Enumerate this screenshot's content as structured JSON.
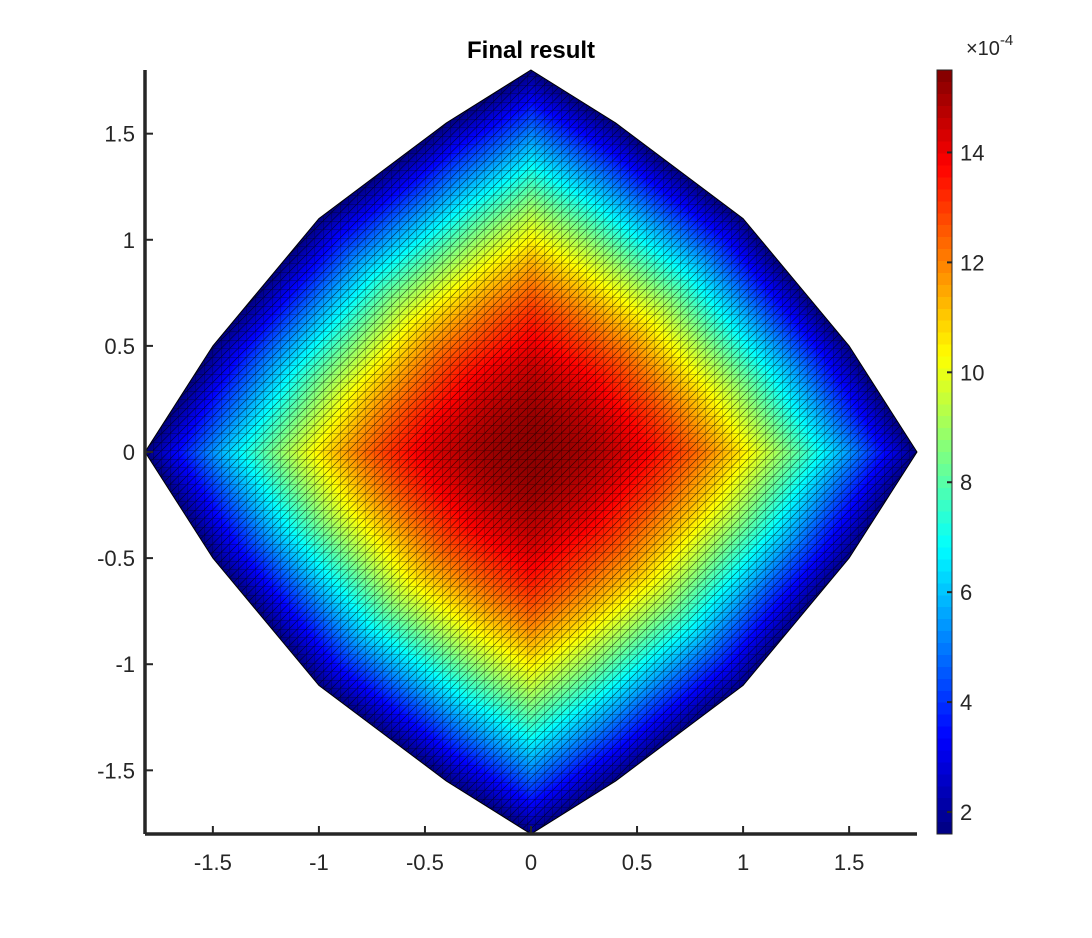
{
  "chart_data": {
    "type": "heatmap",
    "subtype": "triangulated-surface",
    "title": "Final result",
    "xlabel": "",
    "ylabel": "",
    "xlim": [
      -1.82,
      1.82
    ],
    "ylim": [
      -1.8,
      1.8
    ],
    "x_ticks": [
      -1.5,
      -1,
      -0.5,
      0,
      0.5,
      1,
      1.5
    ],
    "y_ticks": [
      -1.5,
      -1,
      -0.5,
      0,
      0.5,
      1,
      1.5
    ],
    "x_tick_labels": [
      "-1.5",
      "-1",
      "-0.5",
      "0",
      "0.5",
      "1",
      "1.5"
    ],
    "y_tick_labels": [
      "-1.5",
      "-1",
      "-0.5",
      "0",
      "0.5",
      "1",
      "1.5"
    ],
    "domain_boundary": [
      {
        "x": 0.0,
        "y": 1.8
      },
      {
        "x": 0.4,
        "y": 1.55
      },
      {
        "x": 1.0,
        "y": 1.1
      },
      {
        "x": 1.5,
        "y": 0.5
      },
      {
        "x": 1.82,
        "y": 0.0
      },
      {
        "x": 1.5,
        "y": -0.5
      },
      {
        "x": 1.0,
        "y": -1.1
      },
      {
        "x": 0.4,
        "y": -1.55
      },
      {
        "x": 0.0,
        "y": -1.8
      },
      {
        "x": -0.4,
        "y": -1.55
      },
      {
        "x": -1.0,
        "y": -1.1
      },
      {
        "x": -1.5,
        "y": -0.5
      },
      {
        "x": -1.82,
        "y": 0.0
      },
      {
        "x": -1.5,
        "y": 0.5
      },
      {
        "x": -1.0,
        "y": 1.1
      },
      {
        "x": -0.4,
        "y": 1.55
      }
    ],
    "value_peak": {
      "x": 0.0,
      "y": 0.0,
      "value": 15.3
    },
    "value_boundary": 1.6,
    "colorbar": {
      "colormap": "jet",
      "range": [
        1.6,
        15.5
      ],
      "ticks": [
        2,
        4,
        6,
        8,
        10,
        12,
        14
      ],
      "tick_labels": [
        "2",
        "4",
        "6",
        "8",
        "10",
        "12",
        "14"
      ],
      "exponent_base": "×10",
      "exponent_power": "-4",
      "location": "right"
    },
    "grid": false,
    "mesh_edges": true,
    "mesh_edge_color": "#000000"
  }
}
